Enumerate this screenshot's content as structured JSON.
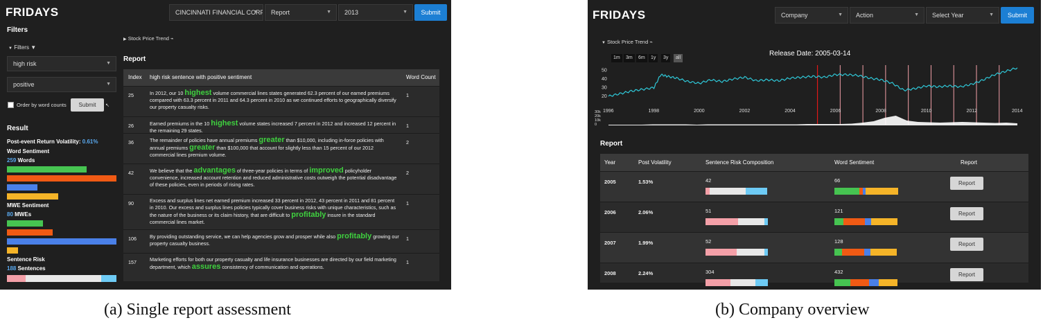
{
  "captions": {
    "a": "(a) Single report assessment",
    "b": "(b) Company overview"
  },
  "colors": {
    "green": "#46c451",
    "orange": "#f05a14",
    "blue": "#4a80e8",
    "yellow": "#f5b428",
    "pink": "#f4a0a8",
    "light": "#e8e8e8",
    "sky": "#6ecbf5",
    "line": "#2fc8d8"
  },
  "panel_a": {
    "logo": "FRIDAYS",
    "header": {
      "company": "CINCINNATI FINANCIAL CORP",
      "action": "Report",
      "year": "2013",
      "submit": "Submit"
    },
    "filters": {
      "title": "Filters",
      "toggle": "Filters",
      "risk": "high risk",
      "sentiment": "positive",
      "order_label": "Order by word counts",
      "submit": "Submit"
    },
    "result": {
      "title": "Result",
      "volatility_label": "Post-event Return Volatility:",
      "volatility_value": "0.61%",
      "word_sentiment_title": "Word Sentiment",
      "word_count": "259",
      "word_unit": "Words",
      "word_bars": [
        {
          "color": "green",
          "fraction": 0.73
        },
        {
          "color": "orange",
          "fraction": 1.0
        },
        {
          "color": "blue",
          "fraction": 0.28
        },
        {
          "color": "yellow",
          "fraction": 0.47
        }
      ],
      "mwe_title": "MWE Sentiment",
      "mwe_count": "80",
      "mwe_unit": "MWEs",
      "mwe_bars": [
        {
          "color": "green",
          "fraction": 0.33
        },
        {
          "color": "orange",
          "fraction": 0.42
        },
        {
          "color": "blue",
          "fraction": 1.0
        },
        {
          "color": "yellow",
          "fraction": 0.1
        }
      ],
      "sentence_title": "Sentence Risk",
      "sentence_count": "188",
      "sentence_unit": "Sentences",
      "sentence_segments": [
        {
          "color": "pink",
          "fraction": 0.17
        },
        {
          "color": "light",
          "fraction": 0.69
        },
        {
          "color": "sky",
          "fraction": 0.14
        }
      ]
    },
    "stock_toggle": "Stock Price Trend",
    "report_title": "Report",
    "table": {
      "headers": [
        "Index",
        "high risk sentence with positive sentiment",
        "Word Count"
      ],
      "rows": [
        {
          "index": "25",
          "before": "In 2012, our 10 ",
          "highlight": "highest",
          "after": " volume commercial lines states generated 62.3 percent of our earned premiums compared with 63.3 percent in 2011 and 64.3 percent in 2010 as we continued efforts to geographically diversify our property casualty risks.",
          "count": "1"
        },
        {
          "index": "26",
          "before": "Earned premiums in the 10 ",
          "highlight": "highest",
          "after": " volume states increased 7 percent in 2012 and increased 12 percent in the remaining 29 states.",
          "count": "1"
        },
        {
          "index": "36",
          "before": "The remainder of policies have annual premiums ",
          "highlight": "greater",
          "after": " than $10,000, including in-force policies with annual premiums ",
          "highlight2": "greater",
          "after2": " than $100,000 that account for slightly less than 15 percent of our 2012 commercial lines premium volume.",
          "count": "2"
        },
        {
          "index": "42",
          "before": "We believe that the ",
          "highlight": "advantages",
          "after": " of three-year policies in terms of ",
          "highlight2": "improved",
          "after2": " policyholder convenience, increased account retention and reduced administrative costs outweigh the potential disadvantage of these policies, even in periods of rising rates.",
          "count": "2"
        },
        {
          "index": "90",
          "before": "Excess and surplus lines net earned premium increased 33 percent in 2012, 43 percent in 2011 and 81 percent in 2010. Our excess and surplus lines policies typically cover business risks with unique characteristics, such as the nature of the business or its claim history, that are difficult to ",
          "highlight": "profitably",
          "after": " insure in the standard commercial lines market.",
          "count": "1"
        },
        {
          "index": "106",
          "before": "By providing outstanding service, we can help agencies grow and prosper while also ",
          "highlight": "profitably",
          "after": " growing our property casualty business.",
          "count": "1"
        },
        {
          "index": "157",
          "before": "Marketing efforts for both our property casualty and life insurance businesses are directed by our field marketing department, which ",
          "highlight": "assures",
          "after": " consistency of communication and operations.",
          "count": "1"
        }
      ]
    }
  },
  "panel_b": {
    "logo": "FRIDAYS",
    "header": {
      "company": "Company",
      "action": "Action",
      "year": "Select Year",
      "submit": "Submit"
    },
    "stock_toggle": "Stock Price Trend",
    "ranges": [
      "1m",
      "3m",
      "6m",
      "1y",
      "3y",
      "all"
    ],
    "active_range": "all",
    "release": "Release Date: 2005-03-14",
    "chart_data": {
      "type": "line",
      "title": "Release Date: 2005-03-14",
      "xlabel": "",
      "ylabel": "",
      "x_ticks": [
        "1996",
        "1998",
        "2000",
        "2002",
        "2004",
        "2006",
        "2008",
        "2010",
        "2012",
        "2014"
      ],
      "y_ticks": [
        "20",
        "30",
        "40",
        "50"
      ],
      "volume_ticks": [
        "30k",
        "20k",
        "10k",
        "0"
      ],
      "xlim": [
        1996,
        2014
      ],
      "ylim": [
        15,
        55
      ],
      "release_marker": 2005.2,
      "other_markers": [
        2006.2,
        2007.2,
        2008.2,
        2009.2,
        2010.2,
        2011.2,
        2012.2,
        2013.2
      ],
      "series": [
        {
          "x": [
            1996,
            1996.5,
            1997,
            1997.5,
            1998,
            1998.3,
            1998.6,
            1999,
            1999.5,
            2000,
            2000.5,
            2001,
            2001.5,
            2002,
            2002.5,
            2003,
            2003.5,
            2004,
            2004.5,
            2005,
            2005.5,
            2006,
            2006.5,
            2007,
            2007.5,
            2008,
            2008.5,
            2009,
            2009.5,
            2010,
            2010.5,
            2011,
            2011.5,
            2012,
            2012.5,
            2013,
            2013.5,
            2014
          ],
          "values": [
            19,
            22,
            25,
            27,
            29,
            44,
            42,
            40,
            36,
            34,
            38,
            36,
            39,
            41,
            37,
            38,
            37,
            40,
            41,
            42,
            41,
            44,
            44,
            43,
            40,
            38,
            34,
            26,
            28,
            31,
            30,
            31,
            30,
            33,
            38,
            44,
            48,
            52
          ]
        }
      ],
      "volume": [
        2,
        2,
        2,
        2,
        3,
        3,
        3,
        3,
        2,
        3,
        3,
        3,
        3,
        3,
        3,
        3,
        3,
        3,
        4,
        4,
        4,
        4,
        5,
        8,
        12,
        22,
        28,
        14,
        10,
        9,
        8,
        9,
        10,
        9,
        8,
        7,
        8,
        6
      ]
    },
    "report_title": "Report",
    "table": {
      "headers": [
        "Year",
        "Post Volatility",
        "Sentence Risk Composition",
        "Word Sentiment",
        "Report"
      ],
      "rows": [
        {
          "year": "2005",
          "vol": "1.53%",
          "risk": "42",
          "risk_seg": [
            0.07,
            0.58,
            0.35
          ],
          "words": "66",
          "word_seg": [
            0.4,
            0.05,
            0.04,
            0.12,
            0.24,
            0.15
          ],
          "btn": "Report"
        },
        {
          "year": "2006",
          "vol": "2.06%",
          "risk": "51",
          "risk_seg": [
            0.52,
            0.42,
            0.06
          ],
          "words": "121",
          "word_seg": [
            0.14,
            0.34,
            0.1,
            0.42
          ],
          "btn": "Report"
        },
        {
          "year": "2007",
          "vol": "1.99%",
          "risk": "52",
          "risk_seg": [
            0.5,
            0.44,
            0.06
          ],
          "words": "128",
          "word_seg": [
            0.12,
            0.36,
            0.1,
            0.42
          ],
          "btn": "Report"
        },
        {
          "year": "2008",
          "vol": "2.24%",
          "risk": "304",
          "risk_seg": [
            0.4,
            0.4,
            0.2
          ],
          "words": "432",
          "word_seg": [
            0.25,
            0.3,
            0.15,
            0.3
          ],
          "btn": "Report"
        }
      ]
    }
  }
}
